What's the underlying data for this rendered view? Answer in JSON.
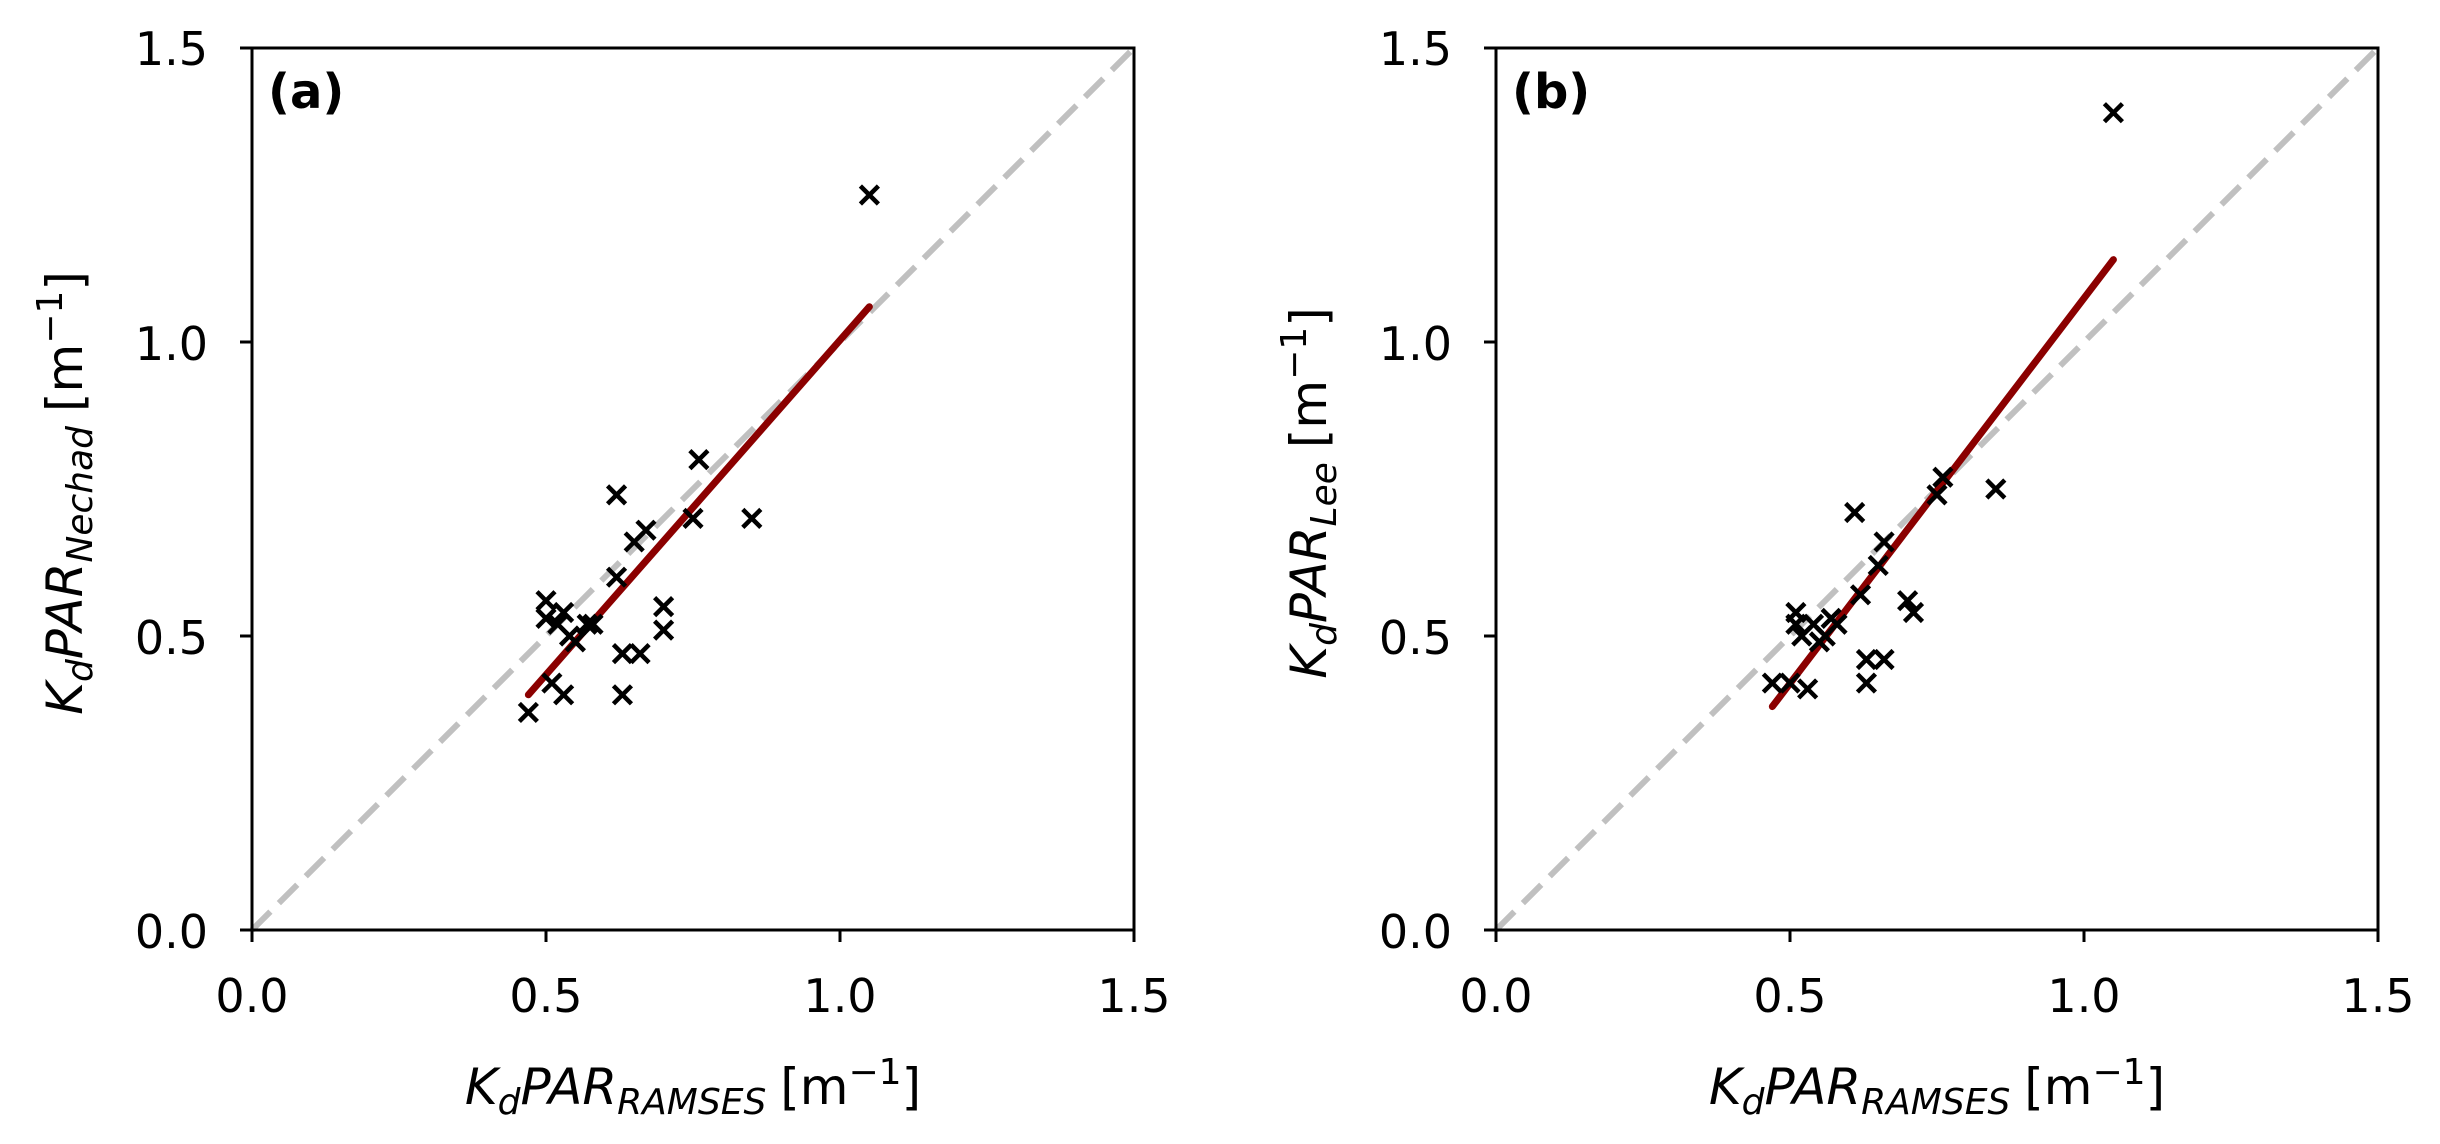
{
  "chart_data": [
    {
      "type": "scatter",
      "panel_label": "(a)",
      "title": "",
      "xlabel": {
        "main": "K",
        "sub1": "d",
        "mid": "PAR",
        "sub2": "RAMSES",
        "unit_pre": "[m",
        "unit_exp": "−1",
        "unit_post": "]"
      },
      "ylabel": {
        "main": "K",
        "sub1": "d",
        "mid": "PAR",
        "sub2": "Nechad",
        "unit_pre": "[m",
        "unit_exp": "−1",
        "unit_post": "]"
      },
      "xlim": [
        0,
        1.5
      ],
      "ylim": [
        0,
        1.5
      ],
      "xticks": [
        "0.0",
        "0.5",
        "1.0",
        "1.5"
      ],
      "yticks": [
        "0.0",
        "0.5",
        "1.0",
        "1.5"
      ],
      "tick_values": [
        0,
        0.5,
        1.0,
        1.5
      ],
      "identity_line": {
        "x": [
          0,
          1.5
        ],
        "y": [
          0,
          1.5
        ],
        "color": "#c0c0c0",
        "style": "dashed"
      },
      "fit_line": {
        "x": [
          0.47,
          1.05
        ],
        "y": [
          0.4,
          1.06
        ],
        "color": "#8b0000"
      },
      "marker": "x",
      "marker_color": "#000000",
      "points": [
        {
          "x": 0.47,
          "y": 0.37
        },
        {
          "x": 0.5,
          "y": 0.56
        },
        {
          "x": 0.5,
          "y": 0.53
        },
        {
          "x": 0.51,
          "y": 0.42
        },
        {
          "x": 0.52,
          "y": 0.52
        },
        {
          "x": 0.53,
          "y": 0.4
        },
        {
          "x": 0.53,
          "y": 0.54
        },
        {
          "x": 0.54,
          "y": 0.5
        },
        {
          "x": 0.55,
          "y": 0.49
        },
        {
          "x": 0.57,
          "y": 0.52
        },
        {
          "x": 0.58,
          "y": 0.52
        },
        {
          "x": 0.62,
          "y": 0.74
        },
        {
          "x": 0.62,
          "y": 0.6
        },
        {
          "x": 0.63,
          "y": 0.47
        },
        {
          "x": 0.63,
          "y": 0.4
        },
        {
          "x": 0.65,
          "y": 0.66
        },
        {
          "x": 0.66,
          "y": 0.47
        },
        {
          "x": 0.67,
          "y": 0.68
        },
        {
          "x": 0.7,
          "y": 0.51
        },
        {
          "x": 0.7,
          "y": 0.55
        },
        {
          "x": 0.75,
          "y": 0.7
        },
        {
          "x": 0.76,
          "y": 0.8
        },
        {
          "x": 0.85,
          "y": 0.7
        },
        {
          "x": 1.05,
          "y": 1.25
        }
      ]
    },
    {
      "type": "scatter",
      "panel_label": "(b)",
      "title": "",
      "xlabel": {
        "main": "K",
        "sub1": "d",
        "mid": "PAR",
        "sub2": "RAMSES",
        "unit_pre": "[m",
        "unit_exp": "−1",
        "unit_post": "]"
      },
      "ylabel": {
        "main": "K",
        "sub1": "d",
        "mid": "PAR",
        "sub2": "Lee",
        "unit_pre": "[m",
        "unit_exp": "−1",
        "unit_post": "]"
      },
      "xlim": [
        0,
        1.5
      ],
      "ylim": [
        0,
        1.5
      ],
      "xticks": [
        "0.0",
        "0.5",
        "1.0",
        "1.5"
      ],
      "yticks": [
        "0.0",
        "0.5",
        "1.0",
        "1.5"
      ],
      "tick_values": [
        0,
        0.5,
        1.0,
        1.5
      ],
      "identity_line": {
        "x": [
          0,
          1.5
        ],
        "y": [
          0,
          1.5
        ],
        "color": "#c0c0c0",
        "style": "dashed"
      },
      "fit_line": {
        "x": [
          0.47,
          1.05
        ],
        "y": [
          0.38,
          1.14
        ],
        "color": "#8b0000"
      },
      "marker": "x",
      "marker_color": "#000000",
      "points": [
        {
          "x": 0.47,
          "y": 0.42
        },
        {
          "x": 0.5,
          "y": 0.42
        },
        {
          "x": 0.51,
          "y": 0.54
        },
        {
          "x": 0.51,
          "y": 0.52
        },
        {
          "x": 0.52,
          "y": 0.5
        },
        {
          "x": 0.53,
          "y": 0.41
        },
        {
          "x": 0.54,
          "y": 0.52
        },
        {
          "x": 0.55,
          "y": 0.49
        },
        {
          "x": 0.56,
          "y": 0.5
        },
        {
          "x": 0.57,
          "y": 0.53
        },
        {
          "x": 0.58,
          "y": 0.52
        },
        {
          "x": 0.61,
          "y": 0.71
        },
        {
          "x": 0.62,
          "y": 0.57
        },
        {
          "x": 0.63,
          "y": 0.46
        },
        {
          "x": 0.63,
          "y": 0.42
        },
        {
          "x": 0.65,
          "y": 0.62
        },
        {
          "x": 0.66,
          "y": 0.46
        },
        {
          "x": 0.66,
          "y": 0.66
        },
        {
          "x": 0.7,
          "y": 0.56
        },
        {
          "x": 0.71,
          "y": 0.54
        },
        {
          "x": 0.75,
          "y": 0.74
        },
        {
          "x": 0.76,
          "y": 0.77
        },
        {
          "x": 0.85,
          "y": 0.75
        },
        {
          "x": 1.05,
          "y": 1.39
        }
      ]
    }
  ]
}
